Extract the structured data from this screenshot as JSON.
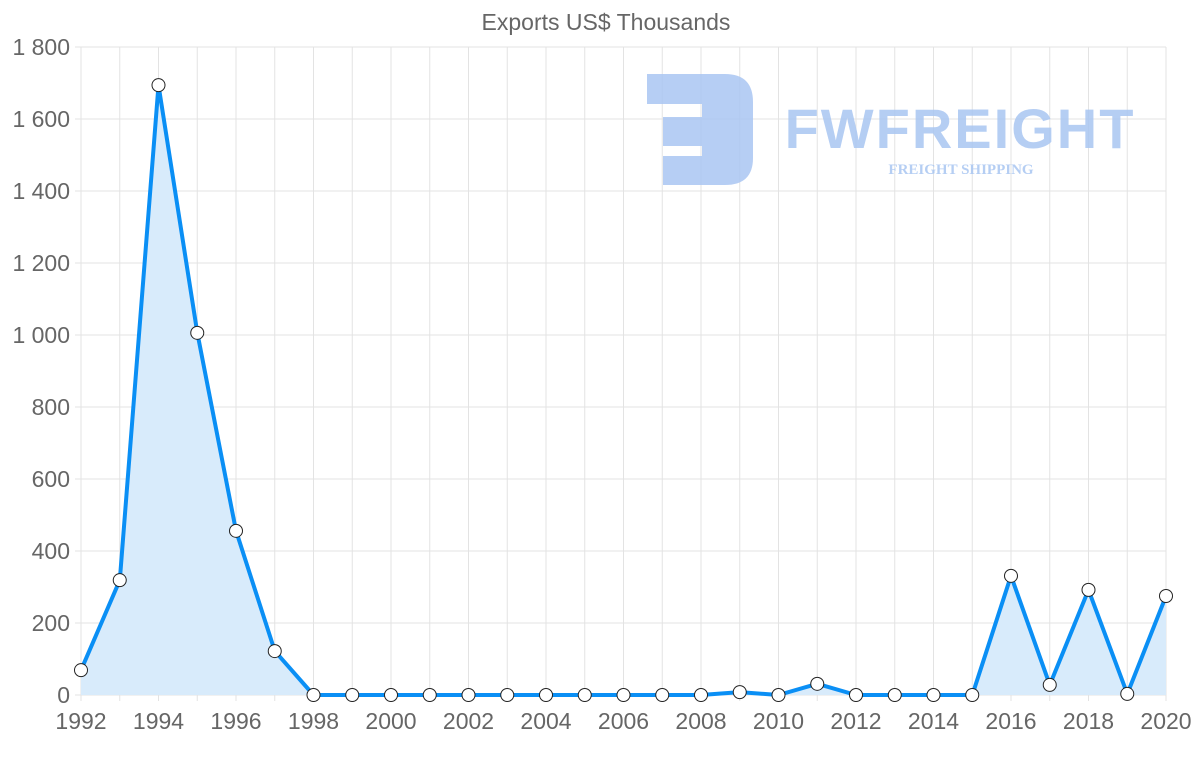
{
  "chart_data": {
    "type": "area",
    "title": "Exports US$ Thousands",
    "xlabel": "",
    "ylabel": "",
    "x": [
      1992,
      1993,
      1994,
      1995,
      1996,
      1997,
      1998,
      1999,
      2000,
      2001,
      2002,
      2003,
      2004,
      2005,
      2006,
      2007,
      2008,
      2009,
      2010,
      2011,
      2012,
      2013,
      2014,
      2015,
      2016,
      2017,
      2018,
      2019,
      2020
    ],
    "series": [
      {
        "name": "Exports US$ Thousands",
        "values": [
          69,
          319,
          1694,
          1006,
          456,
          122,
          0,
          0,
          0,
          0,
          0,
          0,
          0,
          0,
          0,
          0,
          0,
          8,
          0,
          31,
          0,
          0,
          0,
          0,
          331,
          28,
          292,
          3,
          275
        ]
      }
    ],
    "xlim": [
      1992,
      2020
    ],
    "ylim": [
      0,
      1800
    ],
    "yticks": [
      0,
      200,
      400,
      600,
      800,
      1000,
      1200,
      1400,
      1600,
      1800
    ],
    "ytick_labels": [
      "0",
      "200",
      "400",
      "600",
      "800",
      "1 000",
      "1 200",
      "1 400",
      "1 600",
      "1 800"
    ],
    "xtick_labels": [
      "1992",
      "1994",
      "1996",
      "1998",
      "2000",
      "2002",
      "2004",
      "2006",
      "2008",
      "2010",
      "2012",
      "2014",
      "2016",
      "2018",
      "2020"
    ],
    "grid": true,
    "line_color": "#0a8ff5",
    "fill_color": "#d8ebfb"
  },
  "watermark": {
    "brand": "FWFREIGHT",
    "tagline": "FREIGHT SHIPPING",
    "color": "#a9c6f2"
  }
}
